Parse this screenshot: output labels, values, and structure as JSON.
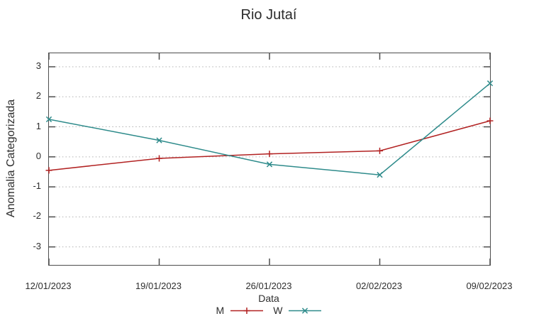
{
  "title": "Rio Jutaí",
  "colors": {
    "background": "#ffffff",
    "border": "#4d4d4d",
    "grid": "#b0b0b0",
    "text": "#2e2e2e",
    "series_m": "#b22222",
    "series_w": "#2e8b8b"
  },
  "chart_data": {
    "type": "line",
    "title": "Rio Jutaí",
    "xlabel": "Data",
    "ylabel": "Anomalia Categorizada",
    "x_tick_labels": [
      "12/01/2023",
      "19/01/2023",
      "26/01/2023",
      "02/02/2023",
      "09/02/2023"
    ],
    "y_ticks": [
      3,
      2,
      1,
      0,
      -1,
      -2,
      -3
    ],
    "ylim": [
      -3.6,
      3.45
    ],
    "grid": "horizontal dotted gridlines at integer y values",
    "legend_position": "bottom-center",
    "series": [
      {
        "name": "M",
        "color": "#b22222",
        "marker": "plus",
        "values": [
          -0.45,
          -0.05,
          0.1,
          0.2,
          1.2
        ]
      },
      {
        "name": "W",
        "color": "#2e8b8b",
        "marker": "cross",
        "values": [
          1.25,
          0.55,
          -0.25,
          -0.6,
          2.45
        ]
      }
    ]
  }
}
